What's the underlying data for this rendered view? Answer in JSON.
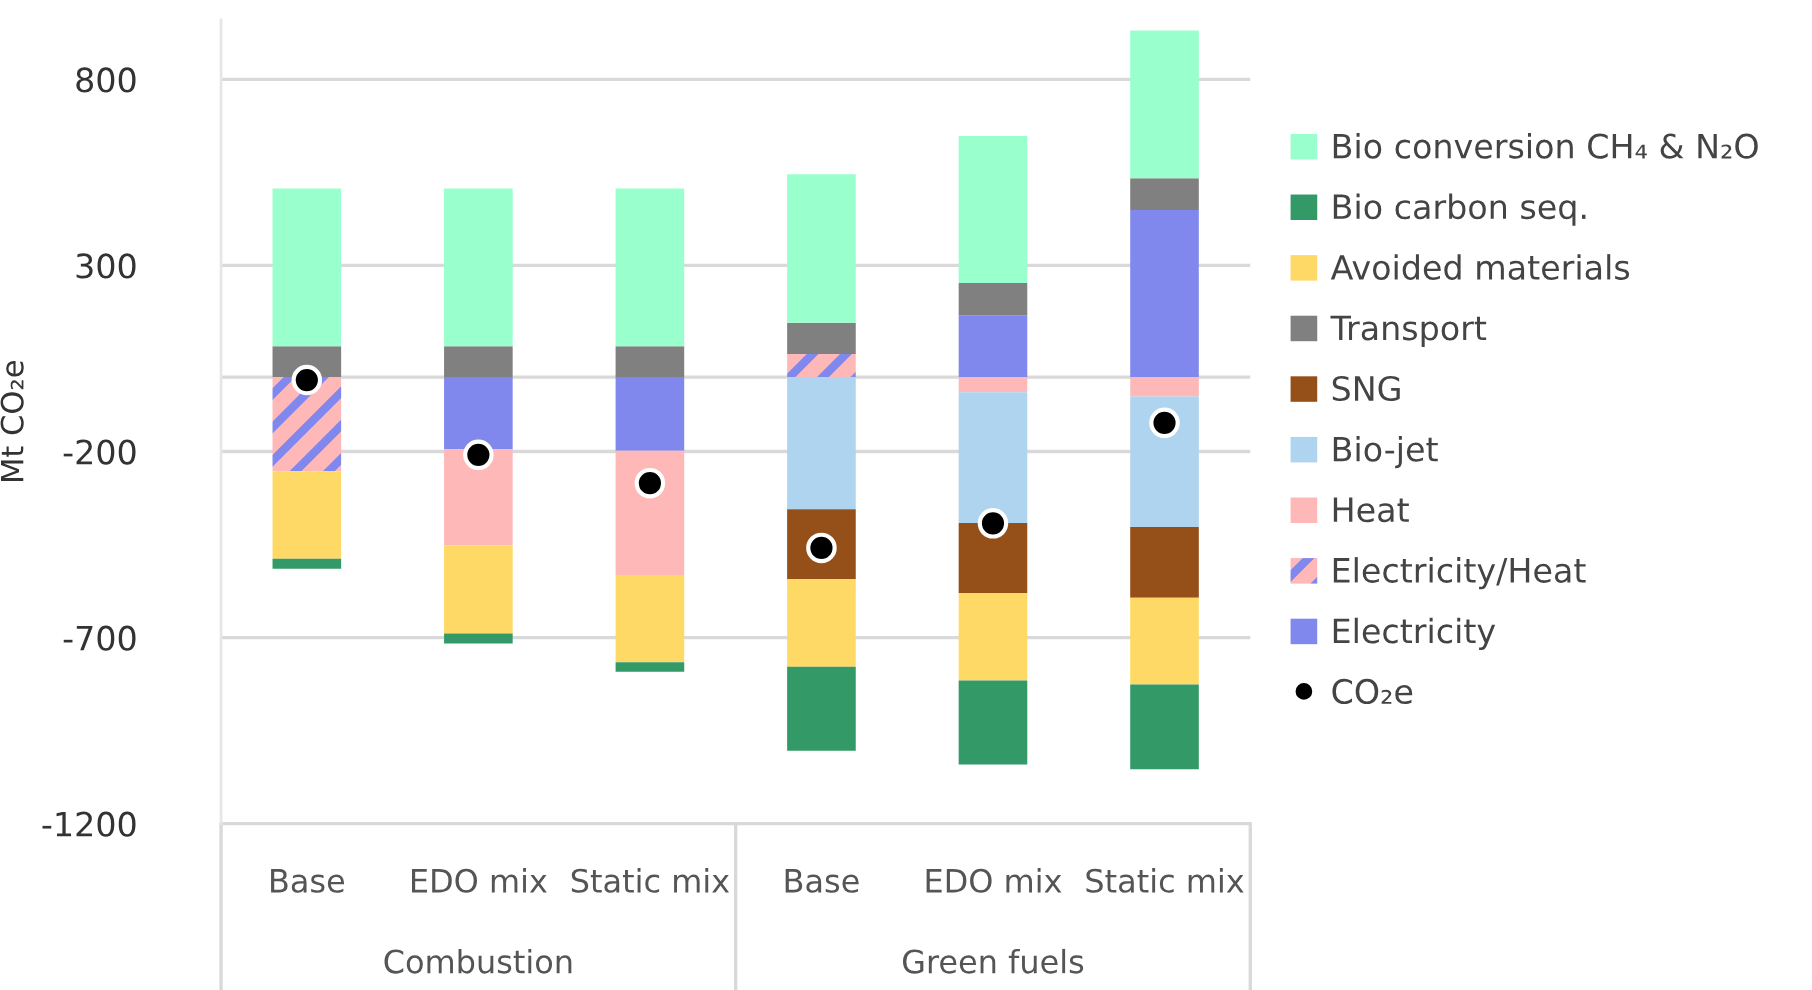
{
  "chart_data": {
    "type": "bar",
    "stacked": true,
    "ylabel": "Mt CO₂e",
    "categories": [
      "Base",
      "EDO mix",
      "Static mix",
      "Base",
      "EDO mix",
      "Static mix"
    ],
    "annotations": [
      "Combustion",
      "Green fuels"
    ],
    "series": [
      {
        "name": "Electricity",
        "color": "#8088ee",
        "values": [
          null,
          -194,
          -198,
          null,
          166,
          449
        ]
      },
      {
        "name": "Electricity/Heat",
        "color": "#8088ee",
        "values": [
          -253,
          null,
          null,
          62,
          null,
          null
        ]
      },
      {
        "name": "Heat",
        "color": "#ffb8b8",
        "values": [
          null,
          -258,
          -334,
          null,
          -41,
          -52
        ]
      },
      {
        "name": "Bio-jet",
        "color": "#aed4f0",
        "values": [
          null,
          null,
          null,
          -355,
          -351,
          -351
        ]
      },
      {
        "name": "SNG",
        "color": "#954f19",
        "values": [
          null,
          null,
          null,
          -188,
          -188,
          -190
        ]
      },
      {
        "name": "Transport",
        "color": "#808080",
        "values": [
          83,
          83,
          83,
          84,
          87,
          85
        ]
      },
      {
        "name": "Avoided materials",
        "color": "#ffd966",
        "values": [
          -235,
          -237,
          -234,
          -235,
          -235,
          -233
        ]
      },
      {
        "name": "Bio carbon seq.",
        "color": "#339966",
        "values": [
          -27,
          -27,
          -26,
          -226,
          -226,
          -228
        ]
      },
      {
        "name": "Bio conversion CH₄ & N₂O",
        "color": "#99ffcc",
        "values": [
          424,
          424,
          424,
          399,
          395,
          397
        ]
      },
      {
        "name": "CO₂e",
        "type": "scatter",
        "color": "#000000",
        "marker": "circle",
        "values": [
          -8,
          -209,
          -285,
          -459,
          -393,
          -123
        ]
      }
    ],
    "ylim": [
      -1200,
      960
    ],
    "yticks": [
      800,
      300,
      -200,
      -700,
      -1200
    ],
    "grid": "y",
    "legend": "right"
  }
}
